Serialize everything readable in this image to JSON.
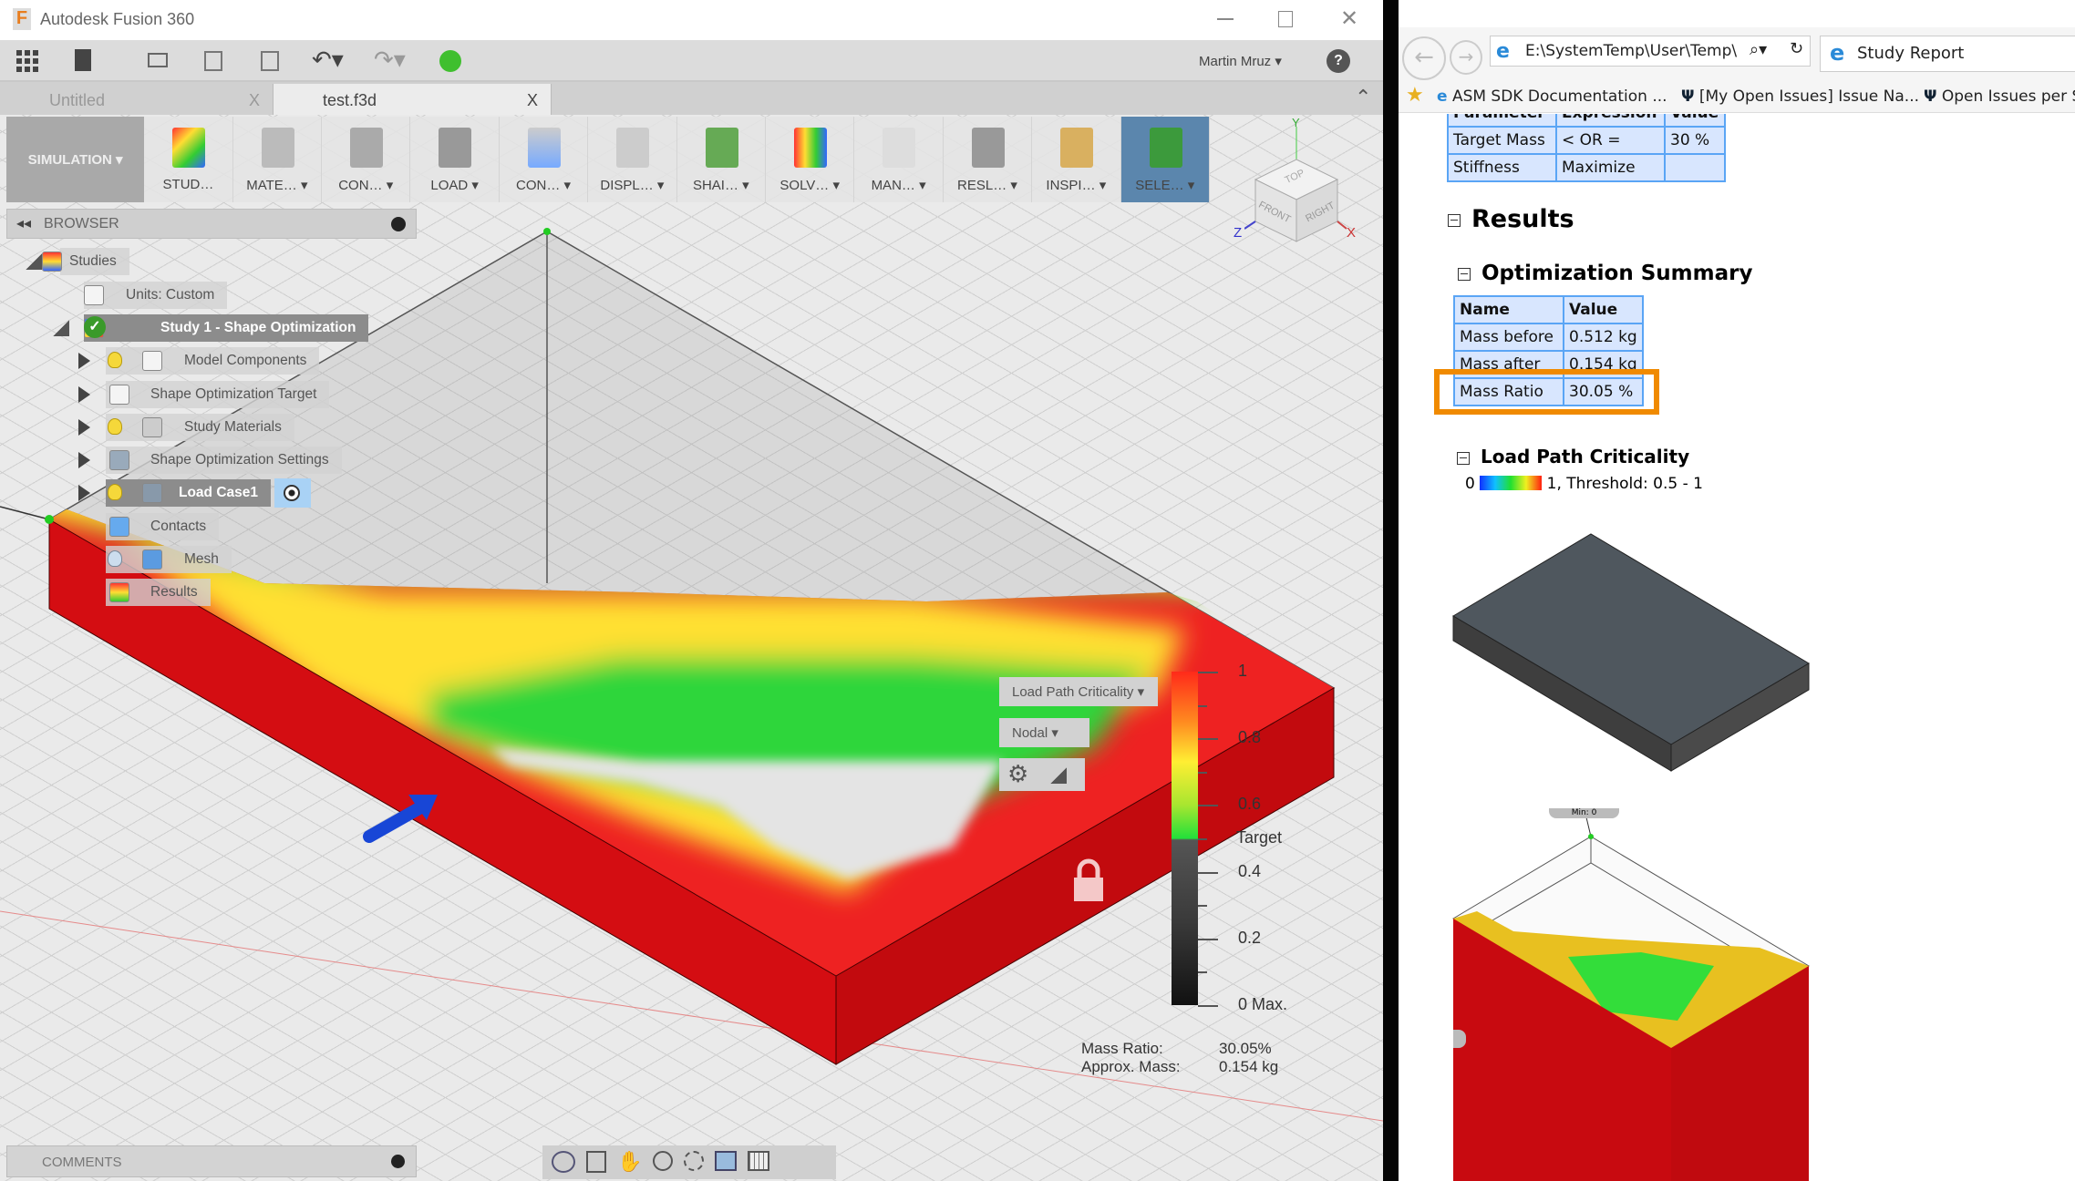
{
  "fusion": {
    "title": "Autodesk Fusion 360",
    "user": "Martin Mruz ▾",
    "help": "?",
    "tabs": [
      {
        "label": "Untitled",
        "close": "X"
      },
      {
        "label": "test.f3d",
        "close": "X"
      }
    ],
    "workspace": "SIMULATION ▾",
    "ribbon": [
      "STUD…",
      "MATE… ▾",
      "CON… ▾",
      "LOAD ▾",
      "CON… ▾",
      "DISPL… ▾",
      "SHAI… ▾",
      "SOLV… ▾",
      "MAN… ▾",
      "RESL… ▾",
      "INSPI… ▾",
      "SELE… ▾"
    ],
    "browser": {
      "title": "BROWSER",
      "items": [
        {
          "label": "Studies",
          "icon": "studies-icon"
        },
        {
          "label": "Units: Custom",
          "icon": "units-icon"
        },
        {
          "label": "Study 1 - Shape Optimization",
          "icon": "study-icon"
        },
        {
          "label": "Model Components",
          "icon": "component-icon"
        },
        {
          "label": "Shape Optimization Target",
          "icon": "target-icon"
        },
        {
          "label": "Study Materials",
          "icon": "materials-icon"
        },
        {
          "label": "Shape Optimization Settings",
          "icon": "settings-icon"
        },
        {
          "label": "Load Case1",
          "icon": "load-case-icon"
        },
        {
          "label": "Contacts",
          "icon": "contacts-icon"
        },
        {
          "label": "Mesh",
          "icon": "mesh-icon"
        },
        {
          "label": "Results",
          "icon": "results-icon"
        }
      ]
    },
    "comments": "COMMENTS",
    "viewcube": {
      "top": "TOP",
      "front": "FRONT",
      "right": "RIGHT",
      "x": "X",
      "y": "Y",
      "z": "Z"
    },
    "legend": {
      "result_type": "Load Path Criticality ▾",
      "mode": "Nodal ▾",
      "ticks": [
        {
          "label": "1",
          "value": 1
        },
        {
          "label": "0.8",
          "value": 0.8
        },
        {
          "label": "0.6",
          "value": 0.6
        },
        {
          "label": "Target",
          "value": 0.5
        },
        {
          "label": "0.4",
          "value": 0.4
        },
        {
          "label": "0.2",
          "value": 0.2
        },
        {
          "label": "0 Max.",
          "value": 0
        }
      ],
      "mass_ratio_label": "Mass Ratio:",
      "mass_ratio": "30.05%",
      "approx_mass_label": "Approx. Mass:",
      "approx_mass": "0.154 kg"
    },
    "colors": {
      "red": "#d40d12",
      "green": "#2fd63a",
      "yellow": "#ffee33"
    }
  },
  "ie": {
    "address": "E:\\SystemTemp\\User\\Temp\\",
    "tab": "Study Report",
    "favorites": [
      "ASM SDK Documentation ...",
      "[My Open Issues] Issue Na...",
      "Open Issues per S"
    ],
    "params": {
      "headers": [
        "Parameter",
        "Expression",
        "Value"
      ],
      "rows": [
        [
          "Target Mass",
          "< OR =",
          "30 %"
        ],
        [
          "Stiffness",
          "Maximize",
          ""
        ]
      ]
    },
    "results_title": "Results",
    "summary_title": "Optimization Summary",
    "summary": {
      "headers": [
        "Name",
        "Value"
      ],
      "rows": [
        [
          "Mass before",
          "0.512 kg"
        ],
        [
          "Mass after",
          "0.154 kg"
        ],
        [
          "Mass Ratio",
          "30.05 %"
        ]
      ]
    },
    "highlight_color": "#f08a00",
    "lpc_title": "Load Path Criticality",
    "lpc_min": "0",
    "lpc_scale": "1, Threshold: 0.5 - 1",
    "min_label": "Min: 0"
  }
}
